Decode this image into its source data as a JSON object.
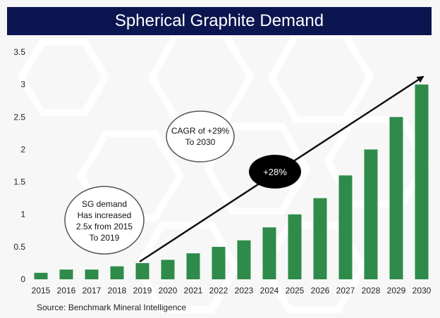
{
  "chart_data": {
    "type": "bar",
    "title": "Spherical Graphite Demand",
    "categories": [
      "2015",
      "2016",
      "2017",
      "2018",
      "2019",
      "2020",
      "2021",
      "2022",
      "2023",
      "2024",
      "2025",
      "2026",
      "2027",
      "2028",
      "2029",
      "2030"
    ],
    "values": [
      0.1,
      0.15,
      0.15,
      0.2,
      0.25,
      0.3,
      0.4,
      0.5,
      0.6,
      0.8,
      1.0,
      1.25,
      1.6,
      2.0,
      2.5,
      3.0
    ],
    "ylim": [
      0,
      3.5
    ],
    "yticks": [
      "0",
      "0.5",
      "1",
      "1.5",
      "2",
      "2.5",
      "3",
      "3.5"
    ],
    "xlabel": "",
    "ylabel": "",
    "bar_color": "#2e8b4a",
    "annotations": {
      "note_left": [
        "SG demand",
        "Has increased",
        "2.5x from 2015",
        "To 2019"
      ],
      "note_cagr": [
        "CAGR of +29%",
        "To 2030"
      ],
      "growth_label": "+28%"
    },
    "source": "Source: Benchmark Mineral Intelligence"
  }
}
